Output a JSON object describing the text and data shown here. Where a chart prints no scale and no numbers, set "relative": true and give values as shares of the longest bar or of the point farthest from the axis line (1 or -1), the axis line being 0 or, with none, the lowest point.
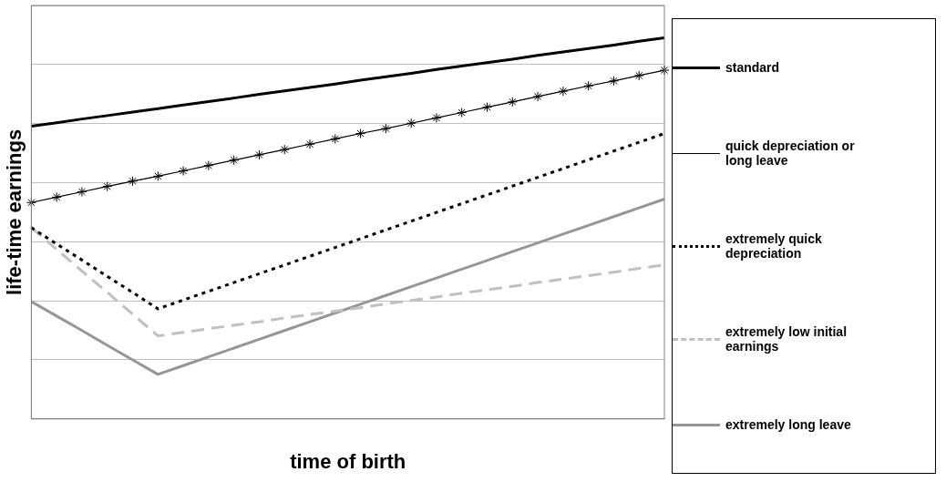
{
  "chart_data": {
    "type": "line",
    "relative": true,
    "xlabel": "time of birth",
    "ylabel": "life-time earnings",
    "legend": "right",
    "grid": "y",
    "categories": [
      null,
      null,
      null,
      null,
      null,
      null,
      null,
      null,
      null,
      null,
      null,
      null,
      null,
      null,
      null,
      null,
      null,
      null,
      null,
      null,
      null,
      null,
      null,
      null,
      null,
      null
    ],
    "series": [
      {
        "name": "standard",
        "color": "#000000",
        "line_style": "solid",
        "marker": "none",
        "values": [
          0.768,
          0.777,
          0.787,
          0.796,
          0.805,
          0.814,
          0.824,
          0.833,
          0.842,
          0.852,
          0.861,
          0.87,
          0.879,
          0.889,
          0.898,
          0.907,
          0.917,
          0.926,
          0.935,
          0.944,
          0.954,
          0.963,
          0.972,
          0.981,
          0.991,
          1.0
        ]
      },
      {
        "name": "quick depreciation or long leave",
        "color": "#000000",
        "line_style": "solid",
        "marker": "cross",
        "values": [
          0.568,
          0.582,
          0.596,
          0.61,
          0.624,
          0.637,
          0.651,
          0.665,
          0.679,
          0.693,
          0.707,
          0.721,
          0.735,
          0.749,
          0.762,
          0.776,
          0.79,
          0.804,
          0.818,
          0.832,
          0.846,
          0.86,
          0.874,
          0.887,
          0.901,
          0.915
        ]
      },
      {
        "name": "extremely quick depreciation",
        "color": "#000000",
        "line_style": "dotted",
        "marker": "none",
        "values": [
          0.502,
          0.459,
          0.417,
          0.374,
          0.332,
          0.289,
          0.312,
          0.335,
          0.358,
          0.381,
          0.404,
          0.427,
          0.45,
          0.473,
          0.496,
          0.519,
          0.542,
          0.565,
          0.588,
          0.611,
          0.634,
          0.657,
          0.68,
          0.703,
          0.726,
          0.749
        ]
      },
      {
        "name": "extremely low initial earnings",
        "color": "#c0c0c0",
        "line_style": "dashed",
        "marker": "none",
        "values": [
          0.502,
          0.445,
          0.388,
          0.332,
          0.275,
          0.218,
          0.227,
          0.237,
          0.246,
          0.255,
          0.265,
          0.274,
          0.283,
          0.292,
          0.302,
          0.311,
          0.32,
          0.33,
          0.339,
          0.348,
          0.358,
          0.367,
          0.376,
          0.385,
          0.395,
          0.404
        ]
      },
      {
        "name": "extremely long leave",
        "color": "#969696",
        "line_style": "solid",
        "marker": "none",
        "values": [
          0.308,
          0.27,
          0.232,
          0.193,
          0.155,
          0.117,
          0.14,
          0.163,
          0.186,
          0.209,
          0.232,
          0.255,
          0.278,
          0.301,
          0.324,
          0.347,
          0.37,
          0.393,
          0.416,
          0.439,
          0.462,
          0.485,
          0.508,
          0.531,
          0.554,
          0.577
        ]
      }
    ]
  }
}
